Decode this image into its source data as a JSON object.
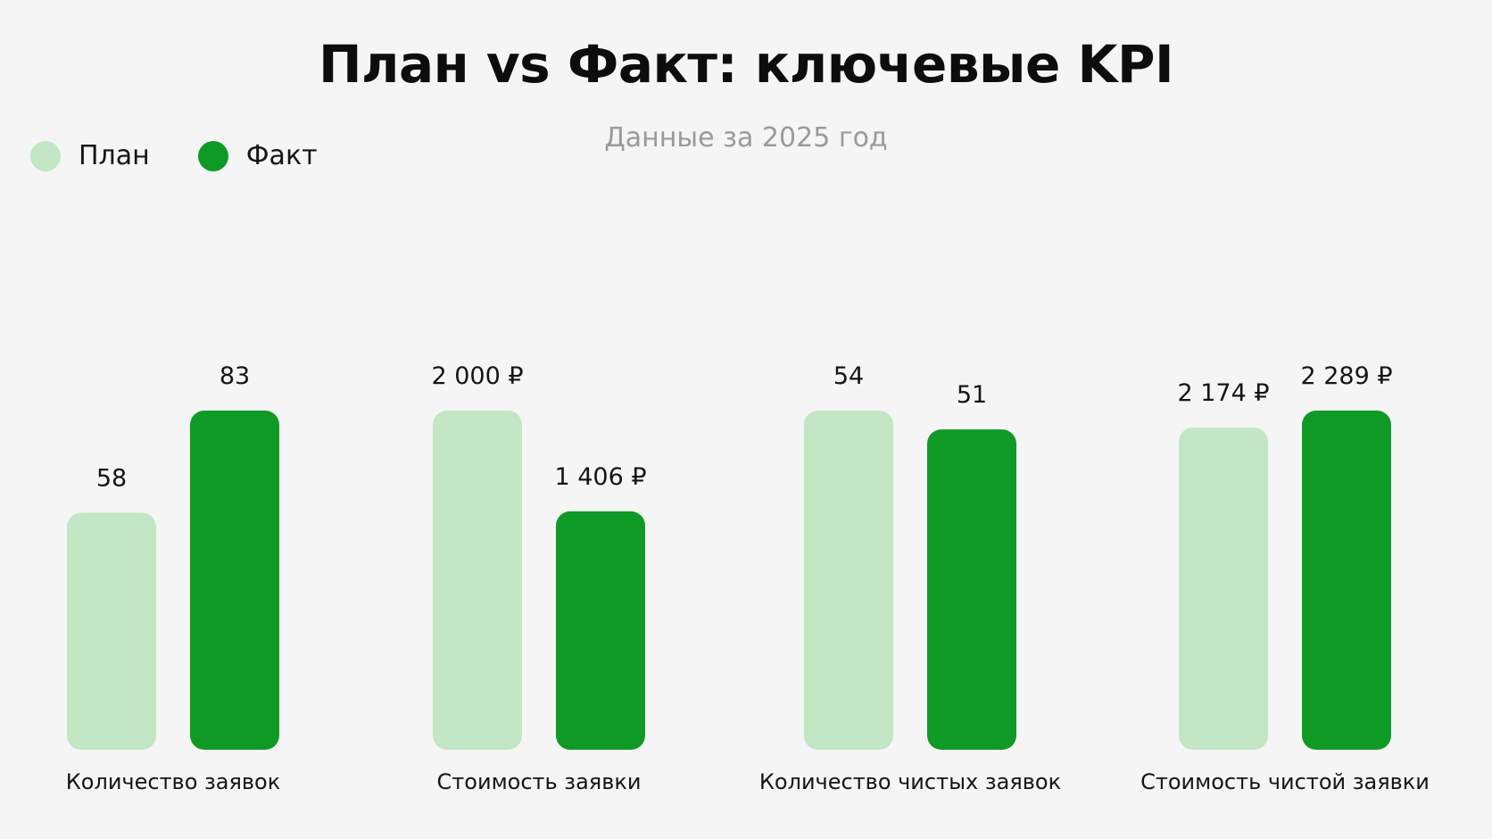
{
  "title": "План vs Факт: ключевые KPI",
  "subtitle": "Данные за 2025 год",
  "legend": [
    {
      "label": "План",
      "color": "#c3e6c5"
    },
    {
      "label": "Факт",
      "color": "#0f9a26"
    }
  ],
  "chart_data": [
    {
      "type": "bar",
      "category": "Количество заявок",
      "series": [
        {
          "name": "План",
          "value": 58,
          "label": "58"
        },
        {
          "name": "Факт",
          "value": 83,
          "label": "83"
        }
      ]
    },
    {
      "type": "bar",
      "category": "Стоимость заявки",
      "series": [
        {
          "name": "План",
          "value": 2000,
          "label": "2 000 ₽"
        },
        {
          "name": "Факт",
          "value": 1406,
          "label": "1 406 ₽"
        }
      ]
    },
    {
      "type": "bar",
      "category": "Количество чистых заявок",
      "series": [
        {
          "name": "План",
          "value": 54,
          "label": "54"
        },
        {
          "name": "Факт",
          "value": 51,
          "label": "51"
        }
      ]
    },
    {
      "type": "bar",
      "category": "Стоимость чистой заявки",
      "series": [
        {
          "name": "План",
          "value": 2174,
          "label": "2 174 ₽"
        },
        {
          "name": "Факт",
          "value": 2289,
          "label": "2 289 ₽"
        }
      ]
    }
  ]
}
